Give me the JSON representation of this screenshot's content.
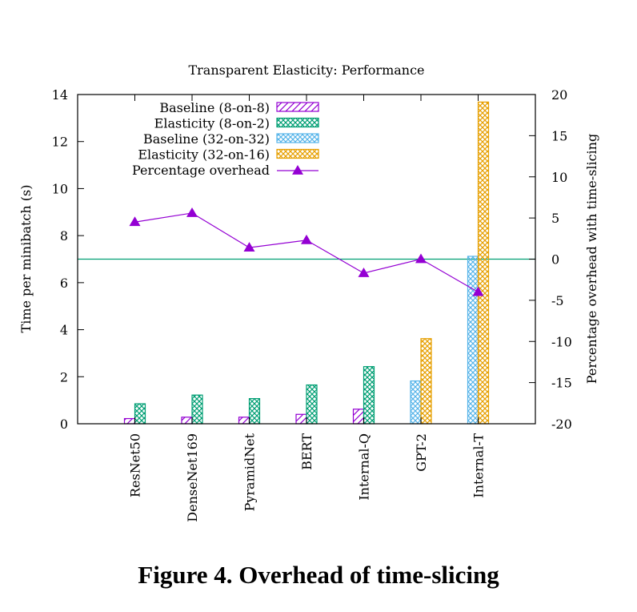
{
  "caption": "Figure 4. Overhead of time-slicing",
  "colors": {
    "baseline8": "#9400d3",
    "elastic8": "#009e73",
    "baseline32": "#56b4e9",
    "elastic32": "#e69f00",
    "overhead": "#9400d3",
    "zero_line": "#009e73"
  },
  "chart_data": {
    "type": "bar",
    "title": "Transparent Elasticity: Performance",
    "ylabel": "Time per minibatch (s)",
    "y2label": "Percentage overhead with time-slicing",
    "ylim": [
      0,
      14
    ],
    "y2lim": [
      -20,
      20
    ],
    "yticks": [
      "0",
      "2",
      "4",
      "6",
      "8",
      "10",
      "12",
      "14"
    ],
    "y2ticks": [
      "-20",
      "-15",
      "-10",
      "-5",
      "0",
      "5",
      "10",
      "15",
      "20"
    ],
    "categories": [
      "ResNet50",
      "DenseNet169",
      "PyramidNet",
      "BERT",
      "Internal-Q",
      "GPT-2",
      "Internal-T"
    ],
    "series": [
      {
        "name": "Baseline (8-on-8)",
        "values": [
          0.22,
          0.28,
          0.28,
          0.4,
          0.62,
          null,
          null
        ]
      },
      {
        "name": "Elasticity (8-on-2)",
        "values": [
          0.85,
          1.22,
          1.07,
          1.65,
          2.43,
          null,
          null
        ]
      },
      {
        "name": "Baseline (32-on-32)",
        "values": [
          null,
          null,
          null,
          null,
          null,
          1.82,
          7.12
        ]
      },
      {
        "name": "Elasticity (32-on-16)",
        "values": [
          null,
          null,
          null,
          null,
          null,
          3.62,
          13.68
        ]
      }
    ],
    "line_series": {
      "name": "Percentage overhead",
      "values": [
        4.5,
        5.6,
        1.4,
        2.3,
        -1.7,
        0.0,
        -4.0
      ]
    },
    "legend_position": "top-left",
    "grid": false
  }
}
